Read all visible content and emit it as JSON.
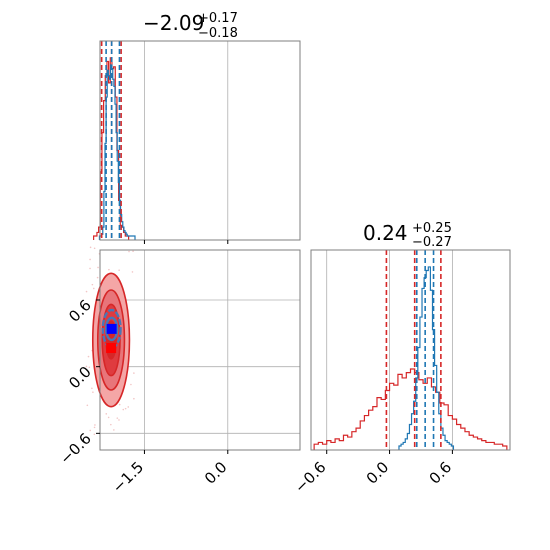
{
  "chart_data": {
    "type": "corner",
    "parameters": [
      "p1",
      "p2"
    ],
    "colors": {
      "red": "#d62728",
      "blue": "#1f77b4",
      "red_fill_light": "#f4a6a6",
      "red_fill_mid": "#e8757a",
      "red_fill_dark": "#df3b3f",
      "marker_blue": "#0000ff",
      "marker_red": "#ff0000"
    },
    "panels": [
      {
        "id": "p1-marginal",
        "type": "histogram",
        "title": {
          "value": "-2.09",
          "sup": "+0.17",
          "sub": "-0.18"
        },
        "xlim": [
          -2.3,
          1.3
        ],
        "grid_x": [
          -1.5,
          0.0
        ],
        "quantiles_red": [
          -2.27,
          -2.09,
          -1.92
        ],
        "quantiles_blue": [
          -2.19,
          -2.09,
          -1.95
        ],
        "series": [
          {
            "name": "red",
            "color": "#d62728",
            "x": [
              -2.4,
              -2.37,
              -2.34,
              -2.31,
              -2.28,
              -2.25,
              -2.22,
              -2.19,
              -2.16,
              -2.13,
              -2.1,
              -2.07,
              -2.04,
              -2.01,
              -1.98,
              -1.95,
              -1.92,
              -1.89,
              -1.86,
              -1.83,
              -1.8
            ],
            "counts": [
              0.0,
              0.0,
              0.02,
              0.05,
              0.36,
              0.58,
              0.76,
              0.9,
              0.98,
              0.86,
              1.0,
              0.94,
              0.95,
              0.78,
              0.48,
              0.2,
              0.06,
              0.05,
              0.02,
              0.0,
              0.0
            ]
          },
          {
            "name": "blue",
            "color": "#1f77b4",
            "x": [
              -2.3,
              -2.28,
              -2.26,
              -2.24,
              -2.22,
              -2.2,
              -2.18,
              -2.16,
              -2.14,
              -2.12,
              -2.1,
              -2.08,
              -2.06,
              -2.04,
              -2.02,
              -2.0,
              -1.98,
              -1.96,
              -1.94,
              -1.92,
              -1.9,
              -1.88,
              -1.86,
              -1.84,
              -1.82,
              -1.8,
              -1.78,
              -1.76,
              -1.74,
              -1.72,
              -1.7,
              -1.68
            ],
            "counts": [
              0.0,
              0.0,
              0.01,
              0.05,
              0.25,
              0.52,
              0.78,
              0.93,
              0.9,
              0.88,
              0.96,
              0.94,
              0.88,
              0.84,
              0.74,
              0.58,
              0.42,
              0.3,
              0.2,
              0.12,
              0.08,
              0.05,
              0.03,
              0.02,
              0.01,
              0.0,
              0.0,
              0.0,
              0.0,
              0.0,
              0.0,
              0.0
            ]
          }
        ]
      },
      {
        "id": "p2-marginal",
        "type": "histogram",
        "title": {
          "value": "0.24",
          "sup": "+0.25",
          "sub": "-0.27"
        },
        "xlim": [
          -0.75,
          1.15
        ],
        "grid_x": [
          -0.6,
          0.0,
          0.6
        ],
        "tick_labels": [
          "-0.6",
          "0.0",
          "0.6"
        ],
        "quantiles_red": [
          -0.03,
          0.24,
          0.49
        ],
        "quantiles_blue": [
          0.26,
          0.34,
          0.42
        ],
        "series": [
          {
            "name": "red",
            "color": "#d62728",
            "x": [
              -0.7,
              -0.66,
              -0.62,
              -0.58,
              -0.54,
              -0.5,
              -0.46,
              -0.42,
              -0.38,
              -0.34,
              -0.3,
              -0.26,
              -0.22,
              -0.18,
              -0.14,
              -0.1,
              -0.06,
              -0.02,
              0.02,
              0.06,
              0.1,
              0.14,
              0.18,
              0.22,
              0.26,
              0.3,
              0.34,
              0.38,
              0.42,
              0.46,
              0.5,
              0.54,
              0.58,
              0.62,
              0.66,
              0.7,
              0.74,
              0.78,
              0.82,
              0.86,
              0.9,
              0.94,
              0.98,
              1.02,
              1.06,
              1.1
            ],
            "counts": [
              0.01,
              0.02,
              0.01,
              0.03,
              0.02,
              0.04,
              0.03,
              0.06,
              0.05,
              0.08,
              0.1,
              0.14,
              0.17,
              0.2,
              0.22,
              0.27,
              0.26,
              0.31,
              0.35,
              0.34,
              0.4,
              0.38,
              0.41,
              0.43,
              0.41,
              0.37,
              0.35,
              0.38,
              0.33,
              0.3,
              0.24,
              0.23,
              0.17,
              0.15,
              0.12,
              0.1,
              0.08,
              0.06,
              0.05,
              0.04,
              0.03,
              0.02,
              0.02,
              0.01,
              0.01,
              0.0
            ]
          },
          {
            "name": "blue",
            "color": "#1f77b4",
            "x": [
              0.1,
              0.12,
              0.14,
              0.16,
              0.18,
              0.2,
              0.22,
              0.24,
              0.26,
              0.28,
              0.3,
              0.32,
              0.34,
              0.36,
              0.38,
              0.4,
              0.42,
              0.44,
              0.46,
              0.48,
              0.5,
              0.52,
              0.54,
              0.56,
              0.58,
              0.6
            ],
            "counts": [
              0.0,
              0.01,
              0.02,
              0.04,
              0.07,
              0.12,
              0.18,
              0.25,
              0.38,
              0.55,
              0.72,
              0.88,
              0.94,
              0.98,
              1.0,
              0.87,
              0.65,
              0.45,
              0.3,
              0.18,
              0.1,
              0.06,
              0.03,
              0.02,
              0.01,
              0.0
            ]
          }
        ]
      },
      {
        "id": "p1-p2-joint",
        "type": "contour",
        "xlim": [
          -2.3,
          1.3
        ],
        "ylim": [
          -0.75,
          1.05
        ],
        "grid_x": [
          -1.5,
          0.0
        ],
        "grid_y": [
          -0.6,
          0.0,
          0.6
        ],
        "x_tick_labels": [
          "-1.5",
          "0.0"
        ],
        "y_tick_labels": [
          "-0.6",
          "0.0",
          "0.6"
        ],
        "red_peak": [
          -2.1,
          0.24
        ],
        "blue_peak": [
          -2.09,
          0.34
        ],
        "red_levels": [
          {
            "rx": 0.33,
            "ry": 0.6,
            "fill": "#f4a6a6"
          },
          {
            "rx": 0.24,
            "ry": 0.45,
            "fill": "#e8757a"
          },
          {
            "rx": 0.16,
            "ry": 0.32,
            "fill": "#df3b3f"
          },
          {
            "rx": 0.09,
            "ry": 0.17,
            "fill": "#d62728"
          }
        ],
        "blue_levels": [
          {
            "rx": 0.16,
            "ry": 0.17
          },
          {
            "rx": 0.1,
            "ry": 0.1
          }
        ]
      }
    ]
  }
}
